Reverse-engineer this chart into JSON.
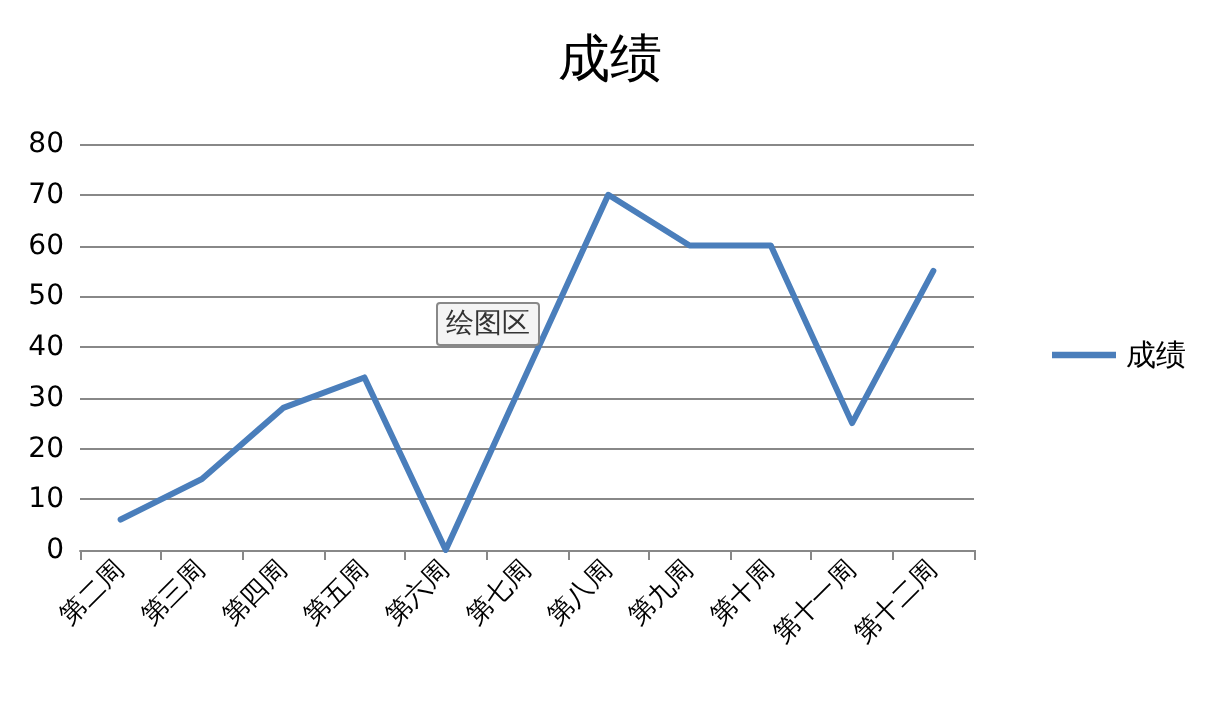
{
  "chart_data": {
    "type": "line",
    "title": "成绩",
    "categories": [
      "第二周",
      "第三周",
      "第四周",
      "第五周",
      "第六周",
      "第七周",
      "第八周",
      "第九周",
      "第十周",
      "第十一周",
      "第十二周"
    ],
    "series": [
      {
        "name": "成绩",
        "color": "#4a7ebb",
        "values": [
          6,
          14,
          28,
          34,
          0,
          35,
          70,
          60,
          60,
          25,
          55
        ]
      }
    ],
    "ylim": [
      0,
      80
    ],
    "yticks": [
      0,
      10,
      20,
      30,
      40,
      50,
      60,
      70,
      80
    ],
    "grid": "y",
    "legend": "right",
    "marker": "none",
    "line_style": "solid",
    "annotations": [
      "绘图区"
    ]
  }
}
